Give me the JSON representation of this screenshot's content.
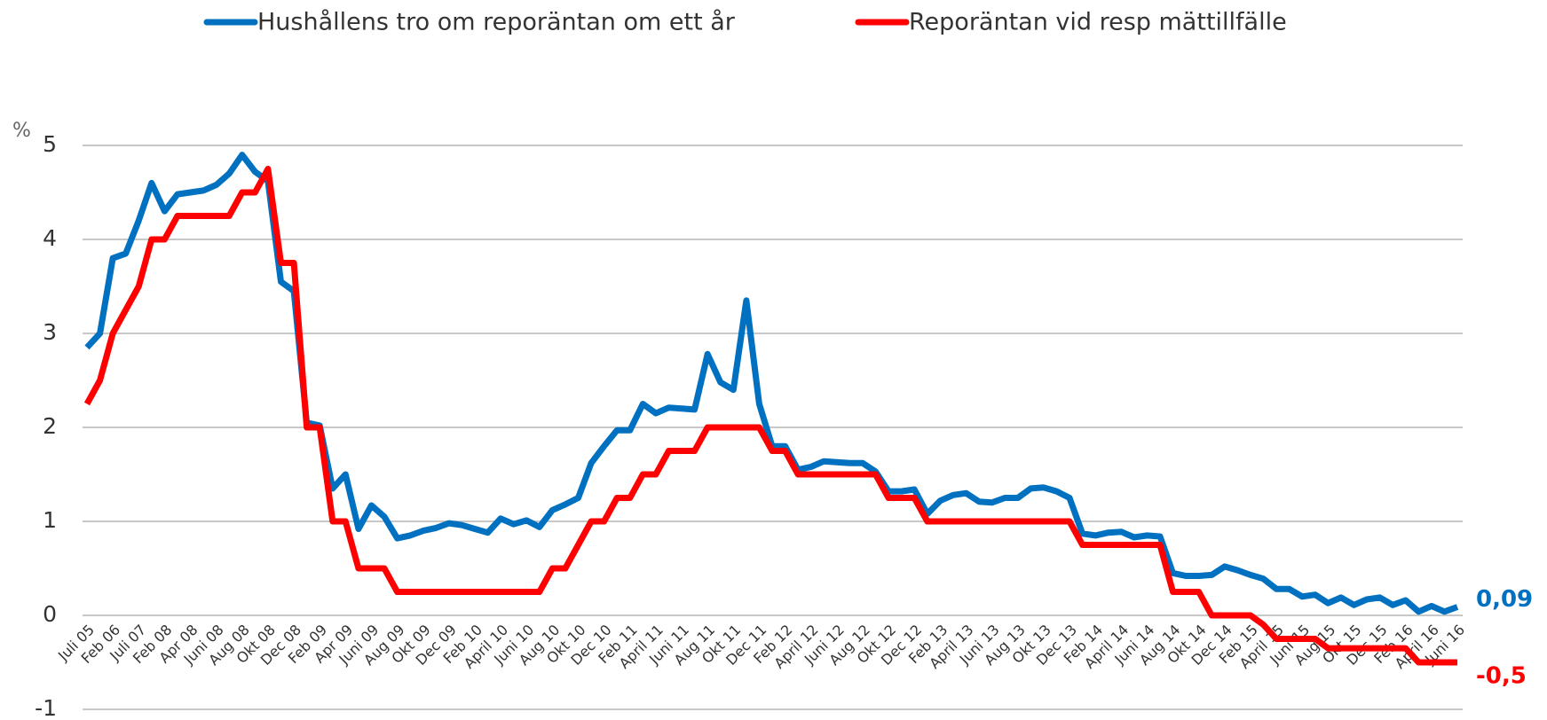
{
  "chart_data": {
    "type": "line",
    "y_label": "%",
    "categories": [
      "Juli 05",
      null,
      "Feb 06",
      null,
      "Juli 07",
      null,
      "Feb 08",
      null,
      "Apr 08",
      null,
      "Juni 08",
      null,
      "Aug 08",
      null,
      "Okt 08",
      null,
      "Dec 08",
      null,
      "Feb 09",
      null,
      "Apr 09",
      null,
      "Juni 09",
      null,
      "Aug 09",
      null,
      "Okt 09",
      null,
      "Dec 09",
      null,
      "Feb 10",
      null,
      "April 10",
      null,
      "Juni 10",
      null,
      "Aug 10",
      null,
      "Okt 10",
      null,
      "Dec 10",
      null,
      "Feb 11",
      null,
      "April 11",
      null,
      "Juni 11",
      null,
      "Aug 11",
      null,
      "Okt 11",
      null,
      "Dec 11",
      null,
      "Feb 12",
      null,
      "April 12",
      null,
      "Juni 12",
      null,
      "Aug 12",
      null,
      "Okt 12",
      null,
      "Dec 12",
      null,
      "Feb 13",
      null,
      "April 13",
      null,
      "Juni 13",
      null,
      "Aug 13",
      null,
      "Okt 13",
      null,
      "Dec 13",
      null,
      "Feb 14",
      null,
      "April 14",
      null,
      "Juni 14",
      null,
      "Aug 14",
      null,
      "Okt 14",
      null,
      "Dec 14",
      null,
      "Feb 15",
      null,
      "April 15",
      null,
      "Juni 15",
      null,
      "Aug 15",
      null,
      "Okt 15",
      null,
      "Dec 15",
      null,
      "Feb 16",
      null,
      "April 16",
      null,
      "Juni 16"
    ],
    "series": [
      {
        "name": "Hushållens tro om reporäntan om ett år",
        "color": "#0070c0",
        "end_label": "0,09",
        "values": [
          2.85,
          3.0,
          3.8,
          3.85,
          4.2,
          4.6,
          4.3,
          4.48,
          4.5,
          4.52,
          4.58,
          4.7,
          4.9,
          4.72,
          4.62,
          3.55,
          3.45,
          2.05,
          2.02,
          1.35,
          1.5,
          0.92,
          1.17,
          1.05,
          0.82,
          0.85,
          0.9,
          0.93,
          0.98,
          0.96,
          0.92,
          0.88,
          1.03,
          0.97,
          1.01,
          0.94,
          1.12,
          1.18,
          1.25,
          1.62,
          1.8,
          1.97,
          1.97,
          2.25,
          2.15,
          2.21,
          2.2,
          2.19,
          2.78,
          2.48,
          2.4,
          3.35,
          2.25,
          1.8,
          1.8,
          1.55,
          1.58,
          1.64,
          1.63,
          1.62,
          1.62,
          1.53,
          1.32,
          1.32,
          1.34,
          1.08,
          1.22,
          1.28,
          1.3,
          1.21,
          1.2,
          1.25,
          1.25,
          1.35,
          1.36,
          1.32,
          1.25,
          0.87,
          0.85,
          0.88,
          0.89,
          0.83,
          0.85,
          0.84,
          0.45,
          0.42,
          0.42,
          0.43,
          0.52,
          0.48,
          0.43,
          0.39,
          0.28,
          0.28,
          0.2,
          0.22,
          0.13,
          0.19,
          0.11,
          0.17,
          0.19,
          0.11,
          0.16,
          0.04,
          0.1,
          0.04,
          0.09
        ]
      },
      {
        "name": "Reporäntan vid resp mättillfälle",
        "color": "#ff0000",
        "end_label": "-0,5",
        "values": [
          2.25,
          2.5,
          3.0,
          3.25,
          3.5,
          4.0,
          4.0,
          4.25,
          4.25,
          4.25,
          4.25,
          4.25,
          4.5,
          4.5,
          4.75,
          3.75,
          3.75,
          2.0,
          2.0,
          1.0,
          1.0,
          0.5,
          0.5,
          0.5,
          0.25,
          0.25,
          0.25,
          0.25,
          0.25,
          0.25,
          0.25,
          0.25,
          0.25,
          0.25,
          0.25,
          0.25,
          0.5,
          0.5,
          0.75,
          1.0,
          1.0,
          1.25,
          1.25,
          1.5,
          1.5,
          1.75,
          1.75,
          1.75,
          2.0,
          2.0,
          2.0,
          2.0,
          2.0,
          1.75,
          1.75,
          1.5,
          1.5,
          1.5,
          1.5,
          1.5,
          1.5,
          1.5,
          1.25,
          1.25,
          1.25,
          1.0,
          1.0,
          1.0,
          1.0,
          1.0,
          1.0,
          1.0,
          1.0,
          1.0,
          1.0,
          1.0,
          1.0,
          0.75,
          0.75,
          0.75,
          0.75,
          0.75,
          0.75,
          0.75,
          0.25,
          0.25,
          0.25,
          0,
          0,
          0,
          0,
          -0.1,
          -0.25,
          -0.25,
          -0.25,
          -0.25,
          -0.35,
          -0.35,
          -0.35,
          -0.35,
          -0.35,
          -0.35,
          -0.35,
          -0.5,
          -0.5,
          -0.5,
          -0.5
        ]
      }
    ],
    "ylim": [
      -1,
      5
    ],
    "yticks": [
      -1,
      0,
      1,
      2,
      3,
      4,
      5
    ],
    "grid": true,
    "legend": "top"
  }
}
